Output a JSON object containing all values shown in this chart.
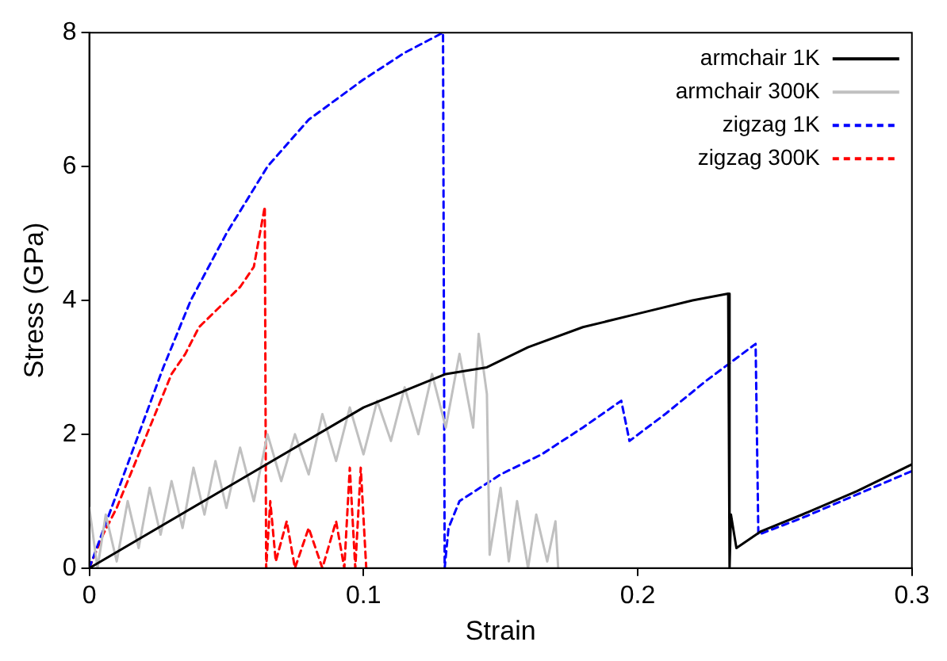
{
  "chart_data": {
    "type": "line",
    "xlabel": "Strain",
    "ylabel": "Stress (GPa)",
    "xlim": [
      0,
      0.3
    ],
    "xticks": [
      0,
      0.1,
      0.2,
      0.3
    ],
    "ylim": [
      0,
      8
    ],
    "yticks": [
      0,
      2,
      4,
      6,
      8
    ],
    "grid": false,
    "legend": "top right",
    "marker": "none",
    "series": [
      {
        "name": "armchair 1K",
        "color": "#000000",
        "line_style": "solid",
        "x": [
          0,
          0.05,
          0.1,
          0.13,
          0.145,
          0.16,
          0.18,
          0.2,
          0.22,
          0.233,
          0.2335,
          0.234,
          0.236,
          0.245,
          0.26,
          0.28,
          0.3
        ],
        "values": [
          0,
          1.2,
          2.4,
          2.9,
          3.0,
          3.3,
          3.6,
          3.8,
          4.0,
          4.1,
          0,
          0.8,
          0.3,
          0.55,
          0.8,
          1.15,
          1.55
        ]
      },
      {
        "name": "armchair 300K",
        "color": "#c0c0c0",
        "line_style": "solid",
        "x": [
          0,
          0.003,
          0.006,
          0.01,
          0.014,
          0.018,
          0.022,
          0.026,
          0.03,
          0.034,
          0.038,
          0.042,
          0.046,
          0.05,
          0.055,
          0.06,
          0.065,
          0.07,
          0.075,
          0.08,
          0.085,
          0.09,
          0.095,
          0.1,
          0.105,
          0.11,
          0.115,
          0.12,
          0.125,
          0.13,
          0.135,
          0.14,
          0.142,
          0.145,
          0.146,
          0.15,
          0.153,
          0.156,
          0.16,
          0.163,
          0.167,
          0.17,
          0.171
        ],
        "values": [
          0.9,
          0,
          0.8,
          0.1,
          1.0,
          0.3,
          1.2,
          0.5,
          1.3,
          0.6,
          1.5,
          0.8,
          1.6,
          0.9,
          1.8,
          1.0,
          2.0,
          1.3,
          2.0,
          1.4,
          2.3,
          1.6,
          2.4,
          1.7,
          2.5,
          1.9,
          2.7,
          2.0,
          2.9,
          2.1,
          3.2,
          2.1,
          3.5,
          2.6,
          0.2,
          1.2,
          0.1,
          1.0,
          0,
          0.8,
          0.1,
          0.7,
          0
        ]
      },
      {
        "name": "zigzag 1K",
        "color": "#0000ff",
        "line_style": "dashed",
        "x": [
          0,
          0.009,
          0.018,
          0.027,
          0.037,
          0.05,
          0.065,
          0.08,
          0.1,
          0.115,
          0.129,
          0.1296,
          0.131,
          0.135,
          0.15,
          0.165,
          0.18,
          0.194,
          0.197,
          0.21,
          0.225,
          0.243,
          0.244,
          0.26,
          0.28,
          0.3
        ],
        "values": [
          0,
          1,
          2,
          3,
          4,
          5,
          6,
          6.7,
          7.3,
          7.7,
          8,
          0,
          0.6,
          1.0,
          1.4,
          1.7,
          2.1,
          2.5,
          1.9,
          2.3,
          2.8,
          3.35,
          0.5,
          0.75,
          1.1,
          1.45
        ]
      },
      {
        "name": "zigzag 300K",
        "color": "#ff0000",
        "line_style": "dashed",
        "x": [
          0,
          0.005,
          0.01,
          0.015,
          0.02,
          0.025,
          0.03,
          0.035,
          0.04,
          0.045,
          0.05,
          0.055,
          0.06,
          0.064,
          0.0645,
          0.066,
          0.068,
          0.072,
          0.075,
          0.08,
          0.085,
          0.09,
          0.093,
          0.095,
          0.097,
          0.099,
          0.101
        ],
        "values": [
          0,
          0.5,
          0.9,
          1.4,
          1.9,
          2.4,
          2.9,
          3.2,
          3.6,
          3.8,
          4.0,
          4.2,
          4.5,
          5.4,
          0,
          1.0,
          0.1,
          0.7,
          0,
          0.6,
          0,
          0.7,
          0,
          1.5,
          0,
          1.5,
          0
        ]
      }
    ]
  }
}
